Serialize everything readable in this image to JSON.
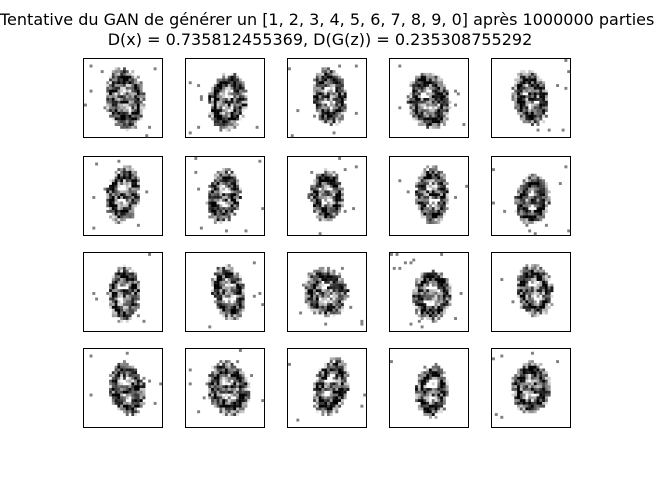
{
  "figure": {
    "title_line_1": "Tentative du GAN de générer un [1, 2, 3, 4, 5, 6, 7, 8, 9, 0] après 1000000 parties",
    "title_line_2": "D(x) = 0.735812455369, D(G(z)) = 0.235308755292"
  },
  "grid": {
    "rows": 4,
    "cols": 5,
    "panel_count": 20,
    "colormap": "gray_r"
  }
}
